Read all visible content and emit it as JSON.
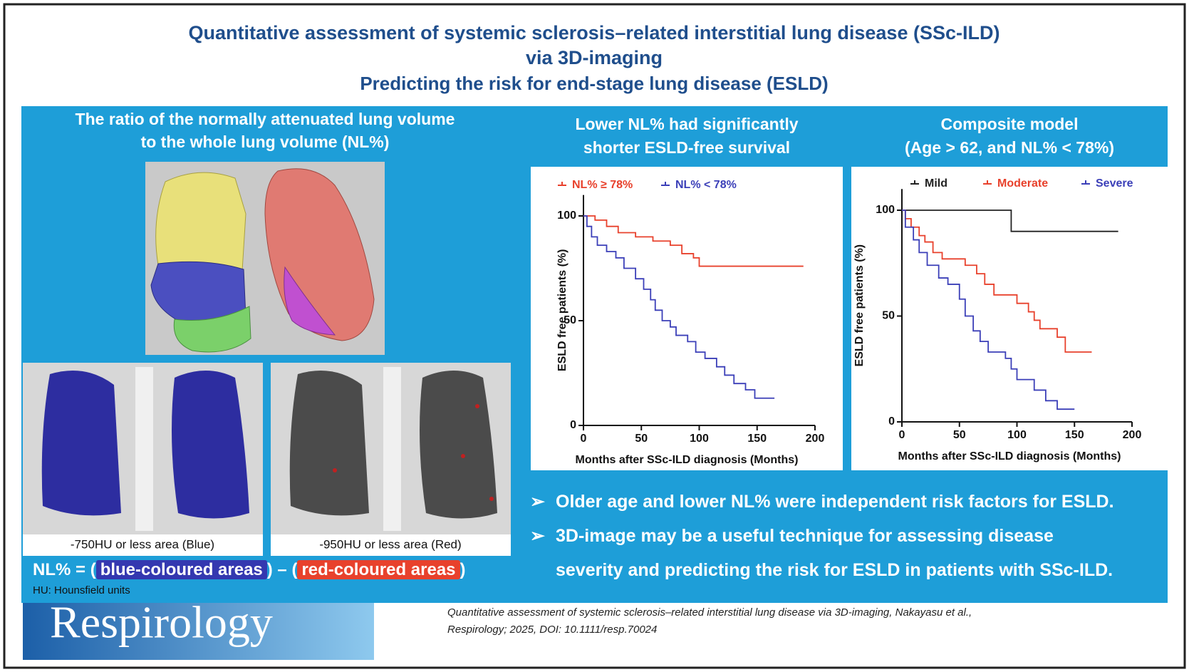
{
  "header": {
    "title_lines": [
      "Quantitative assessment of systemic sclerosis–related interstitial lung disease (SSc-ILD)",
      "via 3D-imaging"
    ],
    "subtitle": "Predicting the risk for end-stage lung disease (ESLD)"
  },
  "left_panel": {
    "heading_lines": [
      "The ratio of the normally attenuated lung volume",
      "to the whole lung volume (NL%)"
    ],
    "captions": [
      "-750HU or less area (Blue)",
      "-950HU or less area (Red)"
    ],
    "formula": [
      "NL% = ",
      "(",
      "blue-coloured areas",
      ") – (",
      "red-coloured areas",
      ")"
    ],
    "note": "HU: Hounsfield units"
  },
  "chart_data": [
    {
      "type": "line",
      "title_lines": [
        "Lower NL% had significantly",
        "shorter ESLD-free survival"
      ],
      "x_label": "Months after SSc-ILD diagnosis (Months)",
      "y_label": "ESLD free patients (%)",
      "xlim": [
        0,
        200
      ],
      "xticks": [
        0,
        50,
        100,
        150,
        200
      ],
      "ylim": [
        0,
        110
      ],
      "yticks": [
        0,
        50,
        100
      ],
      "series": [
        {
          "name": "NL% ≥ 78%",
          "color": "#e8412c",
          "x": [
            0,
            10,
            20,
            30,
            45,
            60,
            75,
            85,
            95,
            100,
            190
          ],
          "values": [
            100,
            98,
            95,
            92,
            90,
            88,
            86,
            82,
            80,
            76,
            76
          ]
        },
        {
          "name": "NL% < 78%",
          "color": "#3b3fb8",
          "x": [
            0,
            3,
            7,
            12,
            20,
            28,
            35,
            45,
            52,
            58,
            62,
            68,
            75,
            80,
            90,
            97,
            105,
            115,
            122,
            130,
            140,
            148,
            165
          ],
          "values": [
            100,
            95,
            90,
            86,
            83,
            80,
            75,
            70,
            65,
            60,
            55,
            50,
            47,
            43,
            40,
            35,
            32,
            28,
            24,
            20,
            17,
            13,
            13
          ]
        }
      ]
    },
    {
      "type": "line",
      "title_lines": [
        "Composite model",
        "(Age > 62, and NL% < 78%)"
      ],
      "x_label": "Months after SSc-ILD diagnosis (Months)",
      "y_label": "ESLD free patients (%)",
      "xlim": [
        0,
        200
      ],
      "xticks": [
        0,
        50,
        100,
        150,
        200
      ],
      "ylim": [
        0,
        110
      ],
      "yticks": [
        0,
        50,
        100
      ],
      "series": [
        {
          "name": "Mild",
          "color": "#222222",
          "x": [
            0,
            95,
            188
          ],
          "values": [
            100,
            90,
            90
          ]
        },
        {
          "name": "Moderate",
          "color": "#e8412c",
          "x": [
            0,
            3,
            8,
            15,
            20,
            27,
            35,
            55,
            65,
            72,
            80,
            100,
            110,
            115,
            120,
            135,
            142,
            165
          ],
          "values": [
            100,
            96,
            92,
            88,
            85,
            80,
            77,
            74,
            70,
            65,
            60,
            56,
            52,
            48,
            44,
            40,
            33,
            33
          ]
        },
        {
          "name": "Severe",
          "color": "#3b3fb8",
          "x": [
            0,
            3,
            10,
            15,
            22,
            32,
            40,
            50,
            55,
            62,
            68,
            75,
            90,
            95,
            100,
            115,
            125,
            135,
            150
          ],
          "values": [
            100,
            92,
            86,
            80,
            74,
            68,
            65,
            58,
            50,
            43,
            38,
            33,
            30,
            25,
            20,
            15,
            10,
            6,
            6
          ]
        }
      ]
    }
  ],
  "bullets": [
    [
      "Older age and lower NL% were independent risk factors for ESLD."
    ],
    [
      "3D-image may be a useful technique for assessing disease",
      "severity and predicting the risk for ESLD in patients with SSc-ILD."
    ]
  ],
  "footer": {
    "logo": "Respirology",
    "citation_lines": [
      "Quantitative assessment of systemic sclerosis–related interstitial lung disease via 3D-imaging, Nakayasu et al.,",
      "Respirology; 2025, DOI: 10.1111/resp.70024"
    ]
  }
}
